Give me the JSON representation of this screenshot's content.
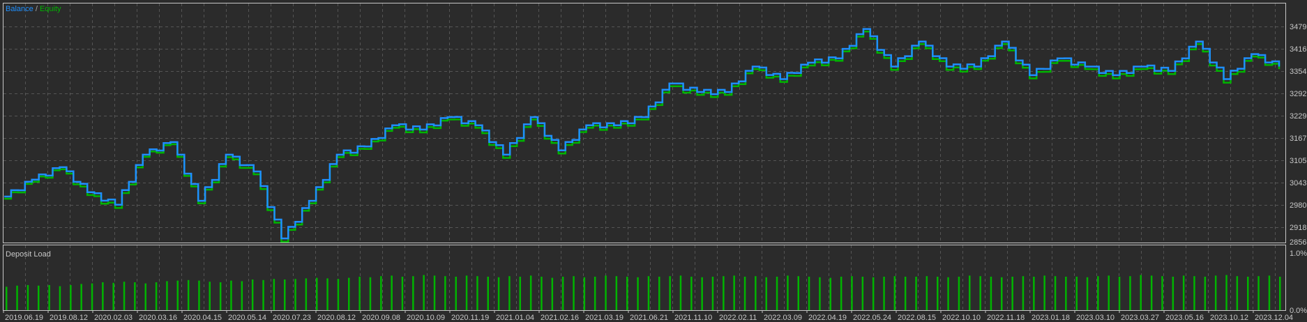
{
  "legend": {
    "balance": "Balance",
    "separator": " / ",
    "equity": "Equity"
  },
  "colors": {
    "background": "#2b2b2b",
    "balance": "#1e90ff",
    "equity": "#00b400",
    "load": "#00b400",
    "frame": "#c8c8c8",
    "grid": "#555555",
    "text": "#c8c8c8"
  },
  "chart_data": [
    {
      "type": "line",
      "title": "",
      "yticks": [
        "3479",
        "3416",
        "3354",
        "3292",
        "3229",
        "3167",
        "3105",
        "3043",
        "2980",
        "2918",
        "2856"
      ],
      "ylim": [
        2856,
        3479
      ],
      "grid": true,
      "legend_placement": "top-left",
      "series": [
        {
          "name": "Balance",
          "values": [
            3004,
            3051,
            3086,
            3016,
            2981,
            3121,
            3156,
            2992,
            3121,
            3074,
            2887,
            2992,
            3121,
            3144,
            3203,
            3191,
            3226,
            3203,
            3121,
            3226,
            3133,
            3203,
            3203,
            3226,
            3320,
            3296,
            3296,
            3367,
            3332,
            3378,
            3390,
            3472,
            3367,
            3437,
            3367,
            3367,
            3437,
            3343,
            3390,
            3367,
            3343,
            3367,
            3355,
            3437,
            3332,
            3402,
            3367
          ]
        },
        {
          "name": "Equity",
          "values": [
            2998,
            3045,
            3080,
            3008,
            2972,
            3115,
            3150,
            2985,
            3114,
            3066,
            2878,
            2985,
            3114,
            3137,
            3196,
            3183,
            3219,
            3196,
            3112,
            3219,
            3124,
            3196,
            3196,
            3219,
            3312,
            3288,
            3288,
            3360,
            3324,
            3370,
            3383,
            3465,
            3358,
            3430,
            3358,
            3360,
            3430,
            3334,
            3383,
            3360,
            3334,
            3360,
            3346,
            3430,
            3322,
            3395,
            3360
          ]
        }
      ]
    },
    {
      "type": "bar",
      "title": "Deposit Load",
      "yticks": [
        "1.0%",
        "0.0%"
      ],
      "ylim": [
        0,
        1.0
      ],
      "values": [
        0.42,
        0.44,
        0.45,
        0.44,
        0.45,
        0.43,
        0.45,
        0.47,
        0.48,
        0.5,
        0.49,
        0.51,
        0.5,
        0.48,
        0.5,
        0.52,
        0.53,
        0.54,
        0.53,
        0.51,
        0.5,
        0.53,
        0.52,
        0.55,
        0.54,
        0.56,
        0.55,
        0.56,
        0.57,
        0.58,
        0.57,
        0.56,
        0.58,
        0.6,
        0.59,
        0.61,
        0.62,
        0.6,
        0.61,
        0.63,
        0.62,
        0.61,
        0.6,
        0.62,
        0.61,
        0.6,
        0.59,
        0.61,
        0.6,
        0.62,
        0.6,
        0.58,
        0.6,
        0.61,
        0.59,
        0.6,
        0.62,
        0.61,
        0.6,
        0.59,
        0.61,
        0.6,
        0.61,
        0.62,
        0.6,
        0.59,
        0.6,
        0.61,
        0.62,
        0.6,
        0.61,
        0.59,
        0.6,
        0.62,
        0.61,
        0.6,
        0.59,
        0.58,
        0.6,
        0.61,
        0.6,
        0.59,
        0.6,
        0.61,
        0.6,
        0.6,
        0.61,
        0.6,
        0.59,
        0.6,
        0.62,
        0.61,
        0.6,
        0.59,
        0.6,
        0.61,
        0.6,
        0.62,
        0.61,
        0.6,
        0.6,
        0.59,
        0.61,
        0.62,
        0.6,
        0.61,
        0.63,
        0.62,
        0.61,
        0.6,
        0.62,
        0.61,
        0.6,
        0.62,
        0.63,
        0.61,
        0.6,
        0.61,
        0.62,
        0.6
      ]
    }
  ],
  "xticks": [
    "2019.06.19",
    "2019.08.12",
    "2020.02.03",
    "2020.03.16",
    "2020.04.15",
    "2020.05.14",
    "2020.07.23",
    "2020.08.12",
    "2020.09.08",
    "2020.10.09",
    "2020.11.19",
    "2021.01.04",
    "2021.02.16",
    "2021.03.19",
    "2021.06.21",
    "2021.11.10",
    "2022.02.11",
    "2022.03.09",
    "2022.04.19",
    "2022.05.24",
    "2022.08.15",
    "2022.10.10",
    "2022.11.18",
    "2023.01.18",
    "2023.03.10",
    "2023.03.27",
    "2023.05.16",
    "2023.10.12",
    "2023.12.04"
  ]
}
